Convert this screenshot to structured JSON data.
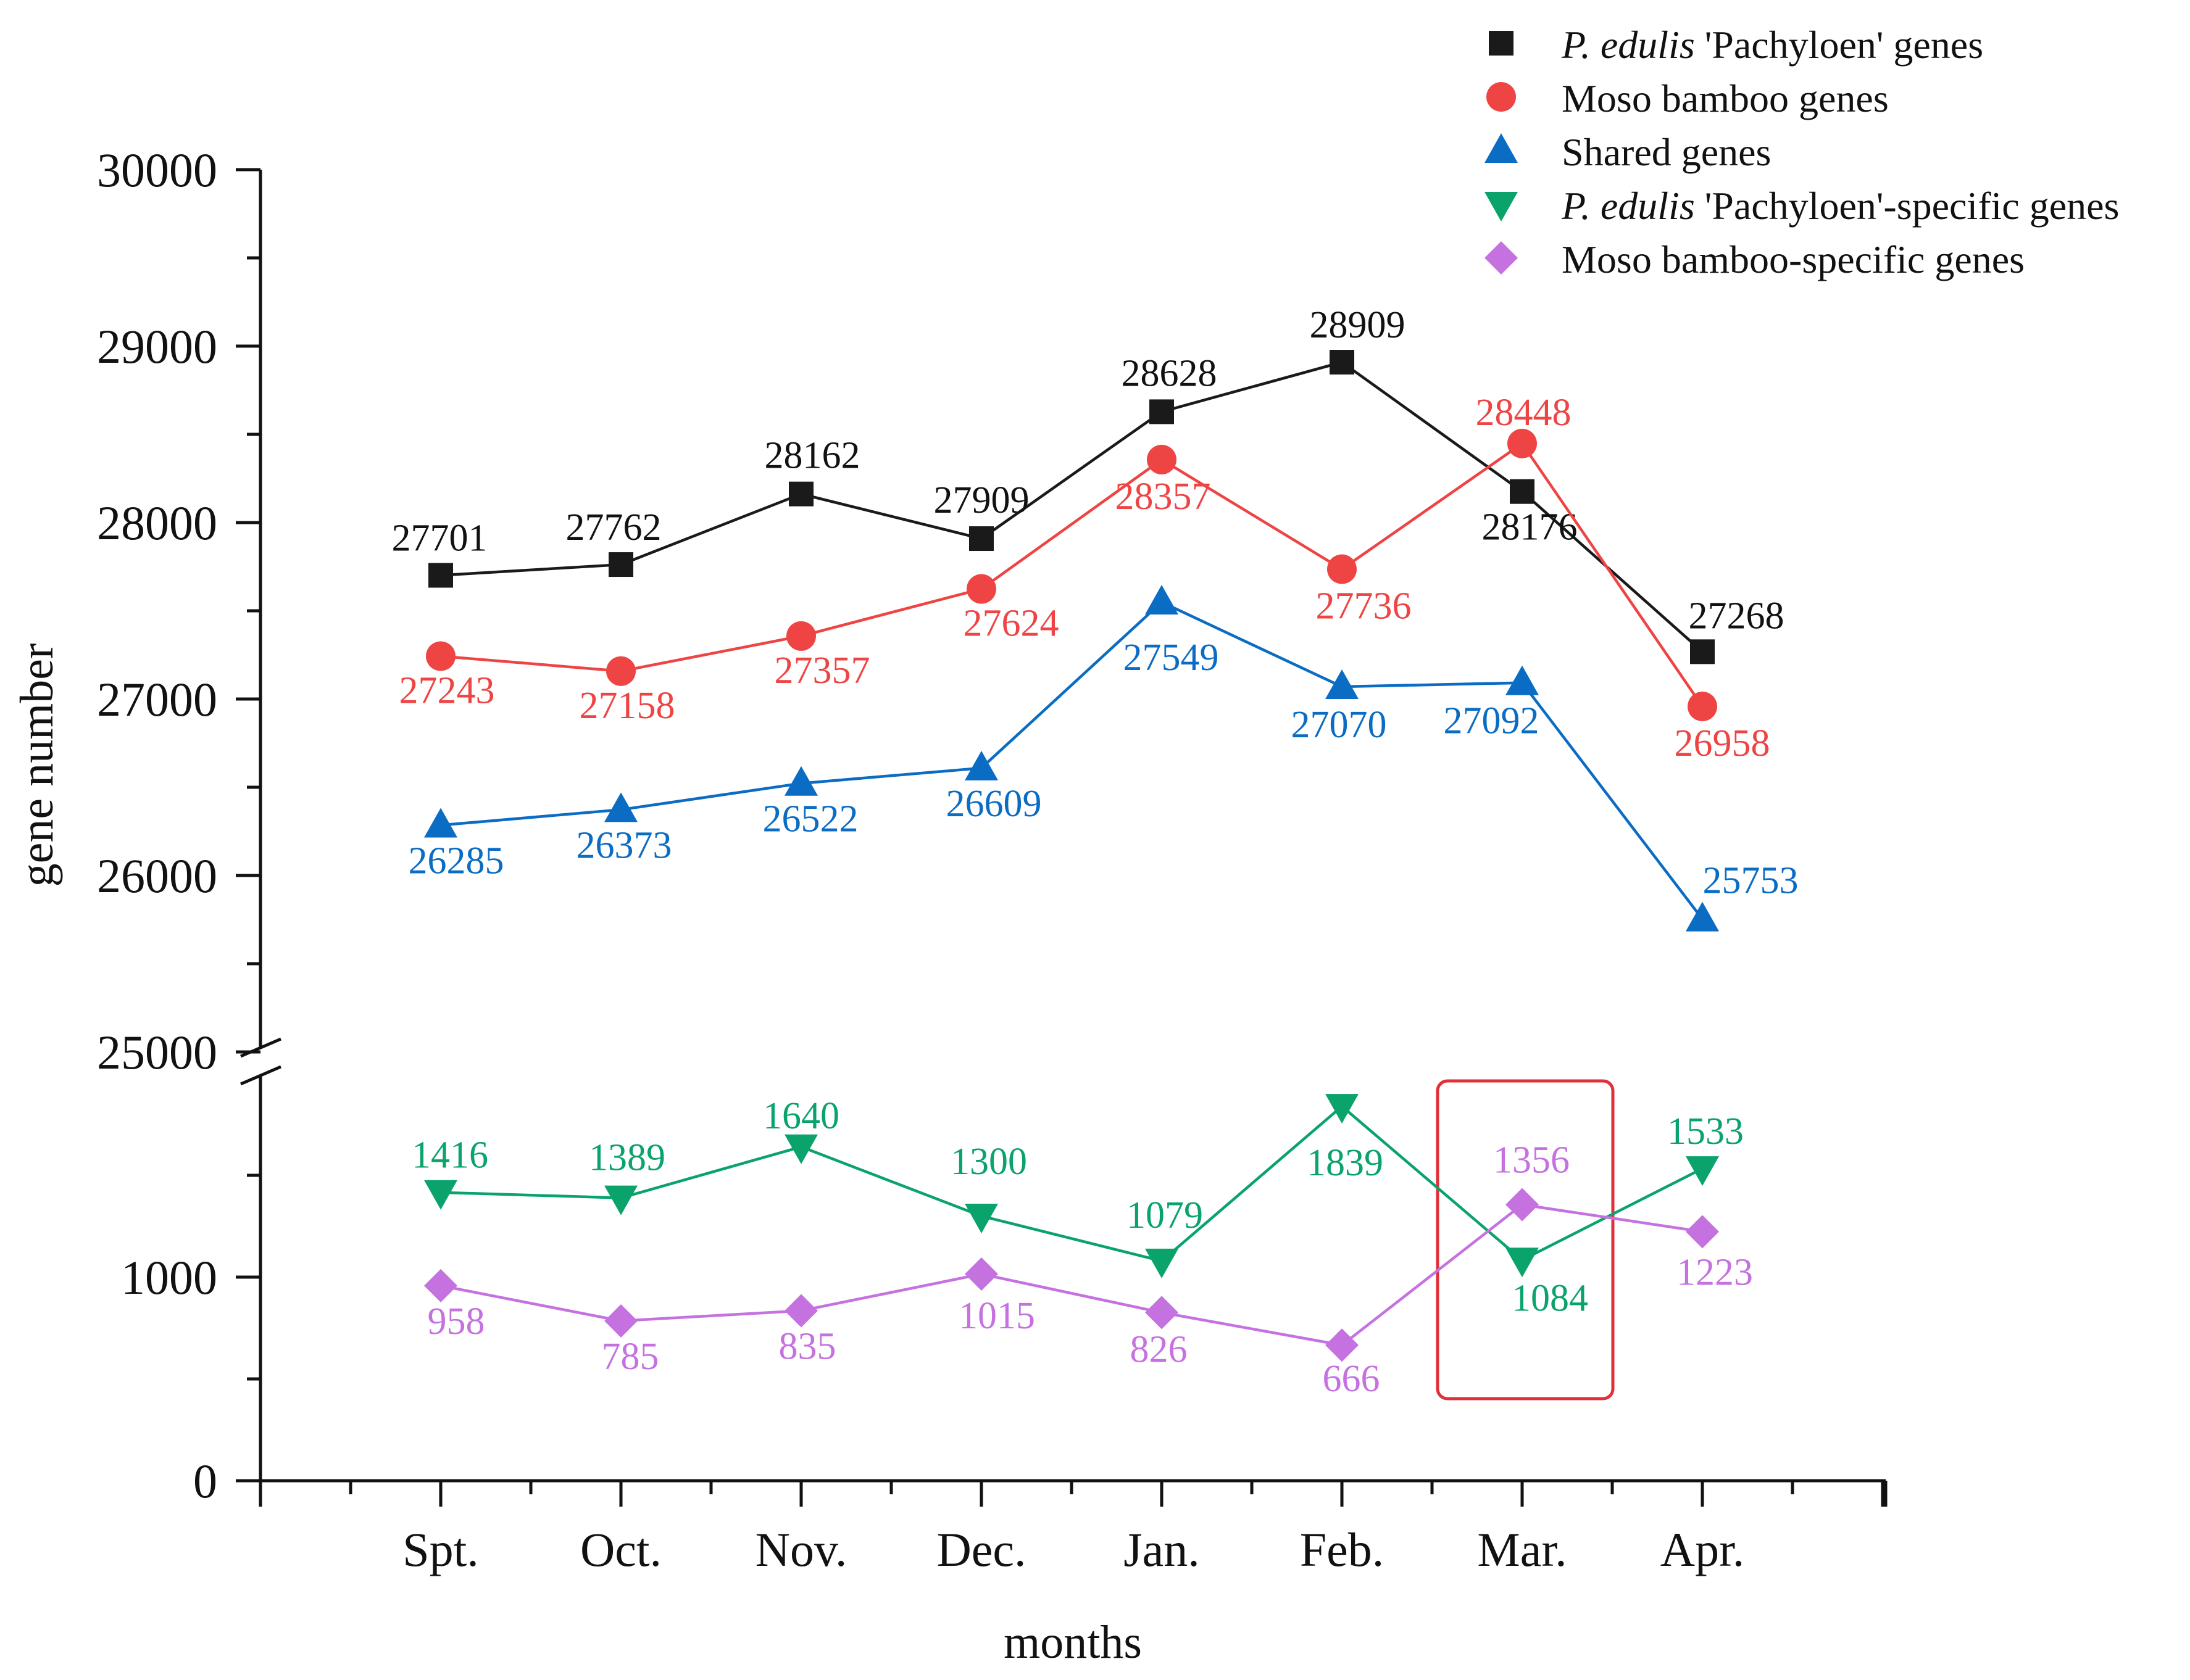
{
  "chart_data": {
    "type": "line",
    "xlabel": "months",
    "ylabel": "gene number",
    "categories": [
      "Spt.",
      "Oct.",
      "Nov.",
      "Dec.",
      "Jan.",
      "Feb.",
      "Mar.",
      "Apr."
    ],
    "y_axis": {
      "broken": true,
      "upper_range": [
        25000,
        30000
      ],
      "lower_range": [
        0,
        1900
      ],
      "ticks": [
        "30000",
        "29000",
        "28000",
        "27000",
        "26000",
        "25000",
        "1000",
        "0"
      ]
    },
    "series": [
      {
        "name_italic": "P. edulis",
        "name_rest": " 'Pachyloen' genes",
        "color": "#1a1a1a",
        "marker": "square",
        "panel": "upper",
        "values": [
          27701,
          27762,
          28162,
          27909,
          28628,
          28909,
          28176,
          27268
        ]
      },
      {
        "name_italic": "",
        "name_rest": "Moso bamboo genes",
        "color": "#ef4444",
        "marker": "circle",
        "panel": "upper",
        "values": [
          27243,
          27158,
          27357,
          27624,
          28357,
          27736,
          28448,
          26958
        ]
      },
      {
        "name_italic": "",
        "name_rest": "Shared genes",
        "color": "#0b6cc4",
        "marker": "triangle-up",
        "panel": "upper",
        "values": [
          26285,
          26373,
          26522,
          26609,
          27549,
          27070,
          27092,
          25753
        ]
      },
      {
        "name_italic": "P. edulis",
        "name_rest": " 'Pachyloen'-specific genes",
        "color": "#0aa36c",
        "marker": "triangle-down",
        "panel": "lower",
        "values": [
          1416,
          1389,
          1640,
          1300,
          1079,
          1839,
          1084,
          1533
        ]
      },
      {
        "name_italic": "",
        "name_rest": "Moso bamboo-specific genes",
        "color": "#c572e0",
        "marker": "diamond",
        "panel": "lower",
        "values": [
          958,
          785,
          835,
          1015,
          826,
          666,
          1356,
          1223
        ]
      }
    ],
    "annotations": [
      {
        "type": "highlight-box",
        "category": "Mar.",
        "color": "#e0303a"
      }
    ],
    "legend_position": "top-right",
    "grid": false
  }
}
